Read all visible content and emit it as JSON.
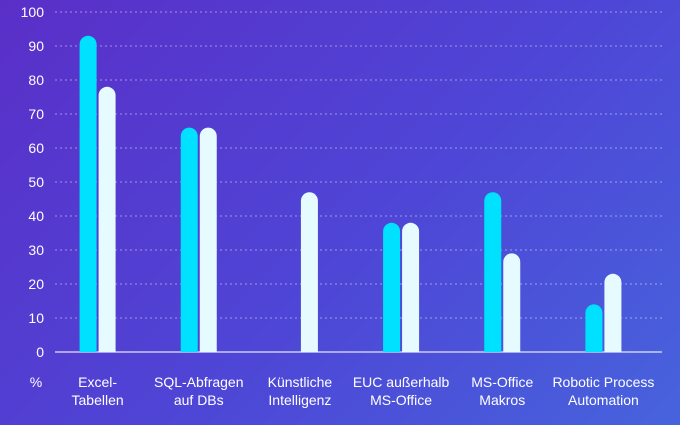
{
  "chart_data": {
    "type": "bar",
    "title": "",
    "xlabel": "",
    "ylabel": "%",
    "ylim": [
      0,
      100
    ],
    "yticks": [
      0,
      10,
      20,
      30,
      40,
      50,
      60,
      70,
      80,
      90,
      100
    ],
    "grid": true,
    "legend": "none",
    "categories": [
      [
        "Excel-",
        "Tabellen"
      ],
      [
        "SQL-Abfragen",
        "auf DBs"
      ],
      [
        "Künstliche",
        "Intelligenz"
      ],
      [
        "EUC außerhalb",
        "MS-Office"
      ],
      [
        "MS-Office",
        "Makros"
      ],
      [
        "Robotic Process",
        "Automation"
      ]
    ],
    "series": [
      {
        "color": "#00e0ff",
        "values": [
          93,
          66,
          null,
          38,
          47,
          14
        ]
      },
      {
        "color": "#e6fbff",
        "values": [
          78,
          66,
          47,
          38,
          29,
          23
        ]
      }
    ]
  }
}
